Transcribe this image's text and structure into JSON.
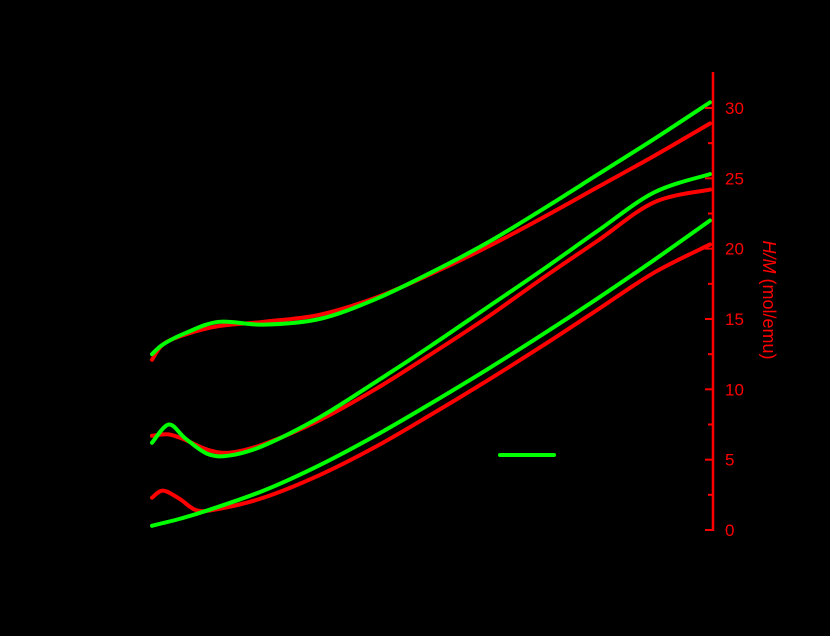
{
  "chart_data": {
    "type": "line",
    "title": "",
    "xlabel": "",
    "ylabel_right": "H/M (mol/emu)",
    "ylabel_right_italic_part": "H/M",
    "ylabel_right_unit_part": " (mol/emu)",
    "y_right_lim": [
      0,
      32
    ],
    "y_right_ticks": [
      0,
      5,
      10,
      15,
      20,
      25,
      30
    ],
    "grid": false,
    "background": "#000000",
    "axis_color": "#ff0000",
    "legend": {
      "position": "inside-right",
      "entries": [
        {
          "color": "#00ff00",
          "label": ""
        }
      ]
    },
    "x_note": "x in relative units 0-100 across plotted range (left axis/labels not visible)",
    "series": [
      {
        "name": "red-upper",
        "color": "#ff0000",
        "x": [
          0,
          2,
          6,
          12,
          20,
          30,
          40,
          50,
          60,
          70,
          80,
          90,
          100
        ],
        "y": [
          12.1,
          13.2,
          13.9,
          14.5,
          14.8,
          15.3,
          16.5,
          18.2,
          20.1,
          22.2,
          24.4,
          26.6,
          28.9
        ]
      },
      {
        "name": "green-upper",
        "color": "#00ff00",
        "x": [
          0,
          2,
          6,
          12,
          20,
          30,
          40,
          50,
          60,
          70,
          80,
          90,
          100
        ],
        "y": [
          12.5,
          13.2,
          14.0,
          14.8,
          14.6,
          15.0,
          16.4,
          18.3,
          20.4,
          22.8,
          25.3,
          27.8,
          30.4
        ]
      },
      {
        "name": "red-middle",
        "color": "#ff0000",
        "x": [
          0,
          3,
          6,
          10,
          14,
          20,
          30,
          40,
          50,
          60,
          70,
          80,
          90,
          100
        ],
        "y": [
          6.7,
          6.8,
          6.4,
          5.7,
          5.5,
          6.1,
          7.8,
          10.0,
          12.5,
          15.1,
          17.9,
          20.6,
          23.3,
          24.2
        ]
      },
      {
        "name": "green-middle",
        "color": "#00ff00",
        "x": [
          0,
          3,
          6,
          10,
          14,
          20,
          30,
          40,
          50,
          60,
          70,
          80,
          90,
          100
        ],
        "y": [
          6.2,
          7.5,
          6.5,
          5.4,
          5.3,
          6.0,
          8.0,
          10.5,
          13.1,
          15.8,
          18.5,
          21.3,
          24.0,
          25.3
        ]
      },
      {
        "name": "red-lower",
        "color": "#ff0000",
        "x": [
          0,
          2,
          5,
          8,
          12,
          20,
          30,
          40,
          50,
          60,
          70,
          80,
          90,
          100
        ],
        "y": [
          2.3,
          2.8,
          2.2,
          1.4,
          1.5,
          2.3,
          3.9,
          5.9,
          8.2,
          10.6,
          13.1,
          15.7,
          18.3,
          20.3
        ]
      },
      {
        "name": "green-lower",
        "color": "#00ff00",
        "x": [
          0,
          5,
          10,
          20,
          30,
          40,
          50,
          60,
          70,
          80,
          90,
          100
        ],
        "y": [
          0.3,
          0.8,
          1.4,
          2.8,
          4.6,
          6.7,
          9.0,
          11.4,
          13.9,
          16.5,
          19.2,
          22.0
        ]
      }
    ]
  }
}
